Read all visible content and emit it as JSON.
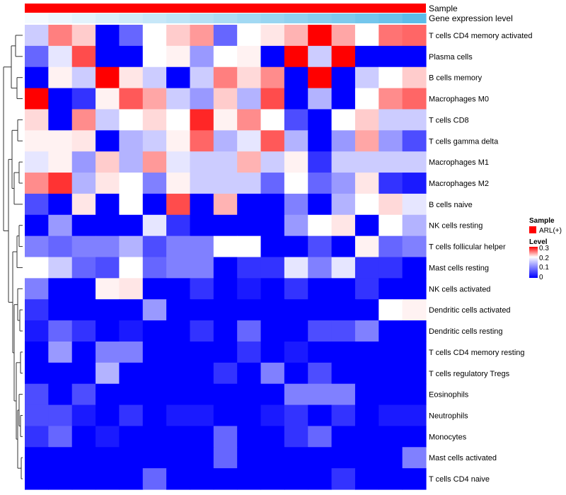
{
  "chart_data": {
    "type": "heatmap",
    "title": "",
    "annotation_tracks": [
      "Sample",
      "Gene expression level"
    ],
    "legend": {
      "sample_title": "Sample",
      "sample_entry": "ARL(+)",
      "sample_color": "#ff0000",
      "level_title": "Level",
      "level_ticks": [
        "0.3",
        "0.2",
        "0.1",
        "0"
      ],
      "scale": [
        0,
        0.3
      ],
      "colors": {
        "low": "#0000ff",
        "mid": "#ffffff",
        "high": "#ff0000"
      }
    },
    "rows": [
      "T cells CD4 memory activated",
      "Plasma cells",
      "B cells memory",
      "Macrophages M0",
      "T cells CD8",
      "T cells gamma delta",
      "Macrophages M1",
      "Macrophages M2",
      "B cells naive",
      "NK cells resting",
      "T cells follicular helper",
      "Mast cells resting",
      "NK cells activated",
      "Dendritic cells activated",
      "Dendritic cells resting",
      "T cells CD4 memory resting",
      "T cells regulatory  Tregs",
      "Eosinophils",
      "Neutrophils",
      "Monocytes",
      "Mast cells activated",
      "T cells CD4 naive"
    ],
    "values": [
      [
        0.08,
        0.2,
        0.14,
        0.0,
        0.04,
        0.1,
        0.14,
        0.18,
        0.04,
        0.1,
        0.12,
        0.16,
        0.3,
        0.17,
        0.1,
        0.21,
        0.22
      ],
      [
        0.04,
        0.09,
        0.24,
        0.0,
        0.0,
        0.1,
        0.11,
        0.06,
        0.1,
        0.11,
        0.0,
        0.3,
        0.08,
        0.3,
        0.0,
        0.0,
        0.0
      ],
      [
        0.0,
        0.11,
        0.08,
        0.3,
        0.12,
        0.08,
        0.0,
        0.08,
        0.2,
        0.13,
        0.19,
        0.0,
        0.3,
        0.0,
        0.08,
        0.1,
        0.14
      ],
      [
        0.3,
        0.0,
        0.02,
        0.11,
        0.23,
        0.17,
        0.08,
        0.06,
        0.14,
        0.07,
        0.24,
        0.0,
        0.07,
        0.0,
        0.1,
        0.19,
        0.22
      ],
      [
        0.13,
        0.0,
        0.19,
        0.08,
        0.1,
        0.13,
        0.1,
        0.27,
        0.11,
        0.19,
        0.1,
        0.03,
        0.0,
        0.1,
        0.14,
        0.08,
        0.08
      ],
      [
        0.11,
        0.11,
        0.12,
        0.0,
        0.07,
        0.08,
        0.11,
        0.22,
        0.07,
        0.09,
        0.23,
        0.07,
        0.0,
        0.06,
        0.17,
        0.06,
        0.03
      ],
      [
        0.09,
        0.11,
        0.06,
        0.14,
        0.07,
        0.18,
        0.09,
        0.08,
        0.08,
        0.16,
        0.08,
        0.11,
        0.02,
        0.08,
        0.08,
        0.08,
        0.08
      ],
      [
        0.19,
        0.26,
        0.07,
        0.12,
        0.1,
        0.05,
        0.11,
        0.08,
        0.08,
        0.08,
        0.04,
        0.1,
        0.04,
        0.06,
        0.12,
        0.02,
        0.01
      ],
      [
        0.03,
        0.0,
        0.12,
        0.0,
        0.1,
        0.0,
        0.24,
        0.0,
        0.16,
        0.0,
        0.0,
        0.05,
        0.0,
        0.07,
        0.1,
        0.13,
        0.09
      ],
      [
        0.0,
        0.06,
        0.0,
        0.0,
        0.0,
        0.09,
        0.02,
        0.0,
        0.0,
        0.0,
        0.0,
        0.06,
        0.1,
        0.12,
        0.0,
        0.1,
        0.07
      ],
      [
        0.05,
        0.04,
        0.05,
        0.05,
        0.07,
        0.03,
        0.05,
        0.05,
        0.1,
        0.1,
        0.0,
        0.0,
        0.03,
        0.0,
        0.11,
        0.04,
        0.05
      ],
      [
        0.1,
        0.08,
        0.04,
        0.03,
        0.1,
        0.04,
        0.05,
        0.05,
        0.0,
        0.02,
        0.02,
        0.09,
        0.05,
        0.09,
        0.02,
        0.02,
        0.0
      ],
      [
        0.05,
        0.0,
        0.0,
        0.11,
        0.12,
        0.0,
        0.0,
        0.02,
        0.0,
        0.01,
        0.0,
        0.02,
        0.0,
        0.0,
        0.02,
        0.0,
        0.0
      ],
      [
        0.02,
        0.0,
        0.0,
        0.0,
        0.0,
        0.06,
        0.0,
        0.0,
        0.0,
        0.0,
        0.0,
        0.0,
        0.0,
        0.0,
        0.0,
        0.1,
        0.11
      ],
      [
        0.01,
        0.04,
        0.02,
        0.0,
        0.01,
        0.0,
        0.0,
        0.02,
        0.0,
        0.04,
        0.0,
        0.0,
        0.03,
        0.03,
        0.05,
        0.0,
        0.0
      ],
      [
        0.0,
        0.06,
        0.0,
        0.05,
        0.05,
        0.0,
        0.0,
        0.0,
        0.0,
        0.02,
        0.0,
        0.01,
        0.0,
        0.0,
        0.0,
        0.0,
        0.0
      ],
      [
        0.0,
        0.0,
        0.0,
        0.07,
        0.0,
        0.0,
        0.0,
        0.0,
        0.02,
        0.0,
        0.05,
        0.0,
        0.03,
        0.0,
        0.0,
        0.0,
        0.0
      ],
      [
        0.03,
        0.0,
        0.03,
        0.0,
        0.0,
        0.0,
        0.0,
        0.0,
        0.0,
        0.0,
        0.0,
        0.05,
        0.05,
        0.05,
        0.0,
        0.0,
        0.0
      ],
      [
        0.03,
        0.03,
        0.01,
        0.0,
        0.02,
        0.0,
        0.01,
        0.01,
        0.0,
        0.0,
        0.01,
        0.02,
        0.0,
        0.02,
        0.0,
        0.01,
        0.01
      ],
      [
        0.02,
        0.04,
        0.0,
        0.01,
        0.0,
        0.0,
        0.0,
        0.0,
        0.04,
        0.0,
        0.0,
        0.02,
        0.04,
        0.0,
        0.0,
        0.0,
        0.0
      ],
      [
        0.0,
        0.0,
        0.0,
        0.0,
        0.0,
        0.0,
        0.0,
        0.0,
        0.04,
        0.0,
        0.0,
        0.0,
        0.0,
        0.0,
        0.0,
        0.0,
        0.05
      ],
      [
        0.0,
        0.0,
        0.0,
        0.0,
        0.0,
        0.04,
        0.0,
        0.0,
        0.0,
        0.0,
        0.0,
        0.0,
        0.0,
        0.02,
        0.0,
        0.0,
        0.0
      ]
    ],
    "expression_level_track": [
      0.0,
      0.06,
      0.12,
      0.18,
      0.24,
      0.3,
      0.36,
      0.42,
      0.48,
      0.54,
      0.6,
      0.66,
      0.72,
      0.78,
      0.84,
      0.9,
      1.0
    ]
  }
}
